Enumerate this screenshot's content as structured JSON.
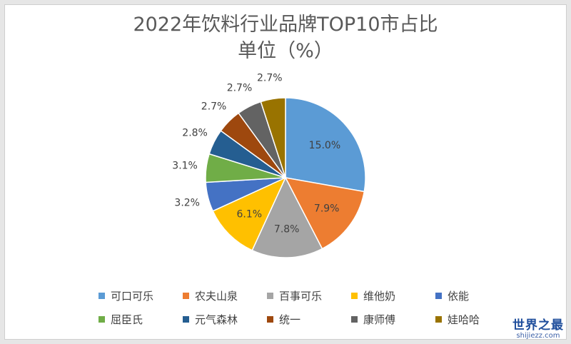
{
  "chart_data": {
    "type": "pie",
    "title": "2022年饮料行业品牌TOP10市占比",
    "subtitle": "单位（%）",
    "unit": "%",
    "slices": [
      {
        "name": "可口可乐",
        "value": 15.0,
        "label": "15.0%",
        "color": "#5b9bd5"
      },
      {
        "name": "农夫山泉",
        "value": 7.9,
        "label": "7.9%",
        "color": "#ed7d31"
      },
      {
        "name": "百事可乐",
        "value": 7.8,
        "label": "7.8%",
        "color": "#a5a5a5"
      },
      {
        "name": "维他奶",
        "value": 6.1,
        "label": "6.1%",
        "color": "#ffc000"
      },
      {
        "name": "依能",
        "value": 3.2,
        "label": "3.2%",
        "color": "#4472c4"
      },
      {
        "name": "屈臣氏",
        "value": 3.1,
        "label": "3.1%",
        "color": "#70ad47"
      },
      {
        "name": "元气森林",
        "value": 2.8,
        "label": "2.8%",
        "color": "#255e91"
      },
      {
        "name": "统一",
        "value": 2.7,
        "label": "2.7%",
        "color": "#9e480e"
      },
      {
        "name": "康师傅",
        "value": 2.7,
        "label": "2.7%",
        "color": "#636363"
      },
      {
        "name": "娃哈哈",
        "value": 2.7,
        "label": "2.7%",
        "color": "#997300"
      }
    ],
    "legend_position": "bottom"
  },
  "watermark": {
    "main": "世界之最",
    "sub": "shijiezz.com"
  }
}
